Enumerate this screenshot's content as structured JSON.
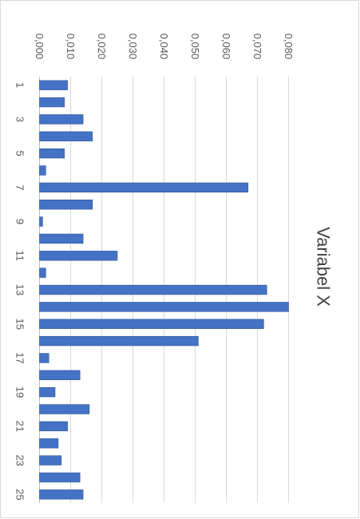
{
  "chart_data": {
    "type": "bar",
    "orientation": "horizontal",
    "rotated": "90deg clockwise",
    "title": "Variabel X",
    "xlabel": "",
    "ylabel": "",
    "categories": [
      "1",
      "2",
      "3",
      "4",
      "5",
      "6",
      "7",
      "8",
      "9",
      "10",
      "11",
      "12",
      "13",
      "14",
      "15",
      "16",
      "17",
      "18",
      "19",
      "20",
      "21",
      "22",
      "23",
      "24",
      "25"
    ],
    "category_tick_labels": [
      "1",
      "3",
      "5",
      "7",
      "9",
      "11",
      "13",
      "15",
      "17",
      "19",
      "21",
      "23",
      "25"
    ],
    "value_tick_labels": [
      "0,000",
      "0,010",
      "0,020",
      "0,030",
      "0,040",
      "0,050",
      "0,060",
      "0,070",
      "0,080"
    ],
    "xlim": [
      0,
      0.08
    ],
    "series": [
      {
        "values": [
          0.009,
          0.008,
          0.014,
          0.017,
          0.008,
          0.002,
          0.067,
          0.017,
          0.001,
          0.014,
          0.025,
          0.002,
          0.073,
          0.08,
          0.072,
          0.051,
          0.003,
          0.013,
          0.005,
          0.016,
          0.009,
          0.006,
          0.007,
          0.013,
          0.014
        ],
        "color": "#4472c4"
      }
    ],
    "grid": true,
    "legend": "none"
  }
}
